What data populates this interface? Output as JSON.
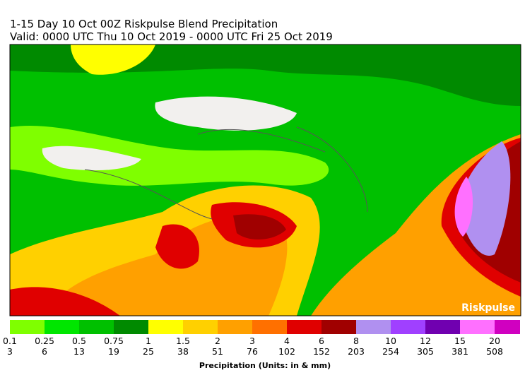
{
  "header": {
    "title": "1-15 Day 10 Oct 00Z Riskpulse Blend Precipitation",
    "subtitle": "Valid: 0000 UTC Thu 10 Oct 2019 - 0000 UTC Fri 25 Oct 2019"
  },
  "map": {
    "watermark": "Riskpulse"
  },
  "colorbar": {
    "colors": [
      "#7fff00",
      "#00e600",
      "#00c000",
      "#008a00",
      "#ffff00",
      "#ffd000",
      "#ffa000",
      "#ff7000",
      "#e00000",
      "#a00000",
      "#b090f0",
      "#a040ff",
      "#7000b0",
      "#ff70ff",
      "#d000c0",
      "#cccccc"
    ],
    "inch_labels": [
      "0.1",
      "0.25",
      "0.5",
      "0.75",
      "1",
      "1.5",
      "2",
      "3",
      "4",
      "6",
      "8",
      "10",
      "12",
      "15",
      "20"
    ],
    "mm_labels": [
      "3",
      "6",
      "13",
      "19",
      "25",
      "38",
      "51",
      "76",
      "102",
      "152",
      "203",
      "254",
      "305",
      "381",
      "508"
    ],
    "label": "Precipitation (Units: in & mm)"
  }
}
